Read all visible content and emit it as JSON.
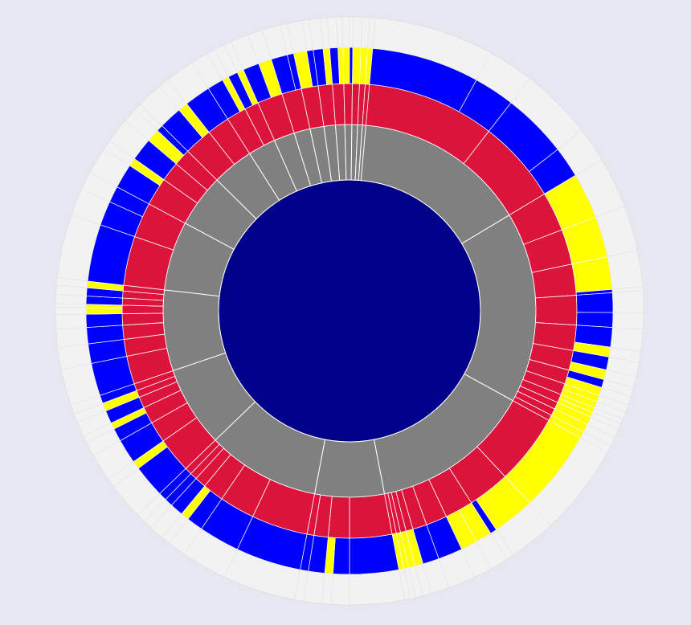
{
  "chart_data": {
    "type": "sunburst",
    "title": "",
    "levels": 4,
    "colors": {
      "level_0": "#00008b",
      "level_1": "#808080",
      "level_2": "#dc143c",
      "level_3_primary": "#0000ff",
      "level_3_secondary": "#ffff00",
      "outer_ring": "#f2f2f2",
      "background": "#e5e8f0",
      "separator": "#ffffff"
    },
    "root": {
      "value": 1,
      "children": [
        {
          "value": 0.164,
          "children": [
            {
              "value": 0.105,
              "children": [
                {
                  "value": 0.08,
                  "c": "B"
                },
                {
                  "value": 0.025,
                  "c": "B"
                }
              ]
            },
            {
              "value": 0.059,
              "children": [
                {
                  "value": 0.04,
                  "c": "B"
                },
                {
                  "value": 0.019,
                  "c": "B"
                }
              ]
            }
          ]
        },
        {
          "value": 0.166,
          "children": [
            {
              "value": 0.028,
              "children": [
                {
                  "value": 0.028,
                  "c": "Y"
                }
              ]
            },
            {
              "value": 0.025,
              "children": [
                {
                  "value": 0.025,
                  "c": "Y"
                }
              ]
            },
            {
              "value": 0.022,
              "children": [
                {
                  "value": 0.02,
                  "c": "Y"
                },
                {
                  "value": 0.002,
                  "c": "B"
                }
              ]
            },
            {
              "value": 0.021,
              "children": [
                {
                  "value": 0.012,
                  "c": "B"
                },
                {
                  "value": 0.009,
                  "c": "B"
                }
              ]
            },
            {
              "value": 0.018,
              "children": [
                {
                  "value": 0.012,
                  "c": "B"
                },
                {
                  "value": 0.006,
                  "c": "Y"
                }
              ]
            },
            {
              "value": 0.014,
              "children": [
                {
                  "value": 0.008,
                  "c": "B"
                },
                {
                  "value": 0.006,
                  "c": "Y"
                }
              ]
            },
            {
              "value": 0.01,
              "children": [
                {
                  "value": 0.005,
                  "c": "B"
                },
                {
                  "value": 0.005,
                  "c": "Y"
                }
              ]
            },
            {
              "value": 0.008,
              "children": [
                {
                  "value": 0.004,
                  "c": "Y"
                },
                {
                  "value": 0.004,
                  "c": "Y"
                }
              ]
            },
            {
              "value": 0.006,
              "children": [
                {
                  "value": 0.003,
                  "c": "Y"
                },
                {
                  "value": 0.003,
                  "c": "Y"
                }
              ]
            },
            {
              "value": 0.005,
              "children": [
                {
                  "value": 0.005,
                  "c": "Y"
                }
              ]
            },
            {
              "value": 0.005,
              "children": [
                {
                  "value": 0.005,
                  "c": "Y"
                }
              ]
            },
            {
              "value": 0.004,
              "children": [
                {
                  "value": 0.004,
                  "c": "Y"
                }
              ]
            }
          ]
        },
        {
          "value": 0.14,
          "children": [
            {
              "value": 0.05,
              "children": [
                {
                  "value": 0.05,
                  "c": "Y"
                }
              ]
            },
            {
              "value": 0.03,
              "children": [
                {
                  "value": 0.026,
                  "c": "Y"
                },
                {
                  "value": 0.004,
                  "c": "B"
                }
              ]
            },
            {
              "value": 0.02,
              "children": [
                {
                  "value": 0.01,
                  "c": "Y"
                },
                {
                  "value": 0.01,
                  "c": "Y"
                }
              ]
            },
            {
              "value": 0.015,
              "children": [
                {
                  "value": 0.015,
                  "c": "B"
                }
              ]
            },
            {
              "value": 0.01,
              "children": [
                {
                  "value": 0.01,
                  "c": "B"
                }
              ]
            },
            {
              "value": 0.005,
              "children": [
                {
                  "value": 0.005,
                  "c": "Y"
                }
              ]
            },
            {
              "value": 0.004,
              "children": [
                {
                  "value": 0.004,
                  "c": "Y"
                }
              ]
            },
            {
              "value": 0.003,
              "children": [
                {
                  "value": 0.003,
                  "c": "Y"
                }
              ]
            },
            {
              "value": 0.003,
              "children": [
                {
                  "value": 0.003,
                  "c": "Y"
                }
              ]
            }
          ]
        },
        {
          "value": 0.06,
          "children": [
            {
              "value": 0.03,
              "children": [
                {
                  "value": 0.03,
                  "c": "B"
                }
              ]
            },
            {
              "value": 0.015,
              "children": [
                {
                  "value": 0.01,
                  "c": "B"
                },
                {
                  "value": 0.005,
                  "c": "Y"
                }
              ]
            },
            {
              "value": 0.01,
              "children": [
                {
                  "value": 0.01,
                  "c": "B"
                }
              ]
            },
            {
              "value": 0.005,
              "children": [
                {
                  "value": 0.005,
                  "c": "B"
                }
              ]
            }
          ]
        },
        {
          "value": 0.098,
          "children": [
            {
              "value": 0.04,
              "children": [
                {
                  "value": 0.04,
                  "c": "B"
                }
              ]
            },
            {
              "value": 0.025,
              "children": [
                {
                  "value": 0.025,
                  "c": "B"
                }
              ]
            },
            {
              "value": 0.015,
              "children": [
                {
                  "value": 0.01,
                  "c": "B"
                },
                {
                  "value": 0.005,
                  "c": "Y"
                }
              ]
            },
            {
              "value": 0.008,
              "children": [
                {
                  "value": 0.008,
                  "c": "B"
                }
              ]
            },
            {
              "value": 0.005,
              "children": [
                {
                  "value": 0.005,
                  "c": "B"
                }
              ]
            },
            {
              "value": 0.005,
              "children": [
                {
                  "value": 0.005,
                  "c": "B"
                }
              ]
            }
          ]
        },
        {
          "value": 0.07,
          "children": [
            {
              "value": 0.025,
              "children": [
                {
                  "value": 0.02,
                  "c": "B"
                },
                {
                  "value": 0.005,
                  "c": "Y"
                }
              ]
            },
            {
              "value": 0.015,
              "children": [
                {
                  "value": 0.015,
                  "c": "B"
                }
              ]
            },
            {
              "value": 0.012,
              "children": [
                {
                  "value": 0.008,
                  "c": "B"
                },
                {
                  "value": 0.004,
                  "c": "Y"
                }
              ]
            },
            {
              "value": 0.008,
              "children": [
                {
                  "value": 0.008,
                  "c": "B"
                }
              ]
            },
            {
              "value": 0.005,
              "children": [
                {
                  "value": 0.005,
                  "c": "Y"
                }
              ]
            },
            {
              "value": 0.005,
              "children": [
                {
                  "value": 0.005,
                  "c": "B"
                }
              ]
            }
          ]
        },
        {
          "value": 0.07,
          "children": [
            {
              "value": 0.02,
              "children": [
                {
                  "value": 0.02,
                  "c": "B"
                }
              ]
            },
            {
              "value": 0.012,
              "children": [
                {
                  "value": 0.012,
                  "c": "B"
                }
              ]
            },
            {
              "value": 0.01,
              "children": [
                {
                  "value": 0.01,
                  "c": "B"
                }
              ]
            },
            {
              "value": 0.008,
              "children": [
                {
                  "value": 0.008,
                  "c": "B"
                }
              ]
            },
            {
              "value": 0.006,
              "children": [
                {
                  "value": 0.004,
                  "c": "Y"
                },
                {
                  "value": 0.002,
                  "c": "Y"
                }
              ]
            },
            {
              "value": 0.005,
              "children": [
                {
                  "value": 0.005,
                  "c": "B"
                }
              ]
            },
            {
              "value": 0.005,
              "children": [
                {
                  "value": 0.005,
                  "c": "B"
                }
              ]
            },
            {
              "value": 0.004,
              "children": [
                {
                  "value": 0.004,
                  "c": "Y"
                }
              ]
            }
          ]
        },
        {
          "value": 0.06,
          "children": [
            {
              "value": 0.035,
              "children": [
                {
                  "value": 0.035,
                  "c": "B"
                }
              ]
            },
            {
              "value": 0.025,
              "children": [
                {
                  "value": 0.015,
                  "c": "B"
                },
                {
                  "value": 0.01,
                  "c": "B"
                }
              ]
            }
          ]
        },
        {
          "value": 0.046,
          "children": [
            {
              "value": 0.02,
              "children": [
                {
                  "value": 0.015,
                  "c": "B"
                },
                {
                  "value": 0.005,
                  "c": "Y"
                }
              ]
            },
            {
              "value": 0.014,
              "children": [
                {
                  "value": 0.014,
                  "c": "B"
                }
              ]
            },
            {
              "value": 0.012,
              "children": [
                {
                  "value": 0.008,
                  "c": "Y"
                },
                {
                  "value": 0.004,
                  "c": "B"
                }
              ]
            }
          ]
        },
        {
          "value": 0.036,
          "children": [
            {
              "value": 0.02,
              "children": [
                {
                  "value": 0.014,
                  "c": "B"
                },
                {
                  "value": 0.006,
                  "c": "Y"
                }
              ]
            },
            {
              "value": 0.016,
              "children": [
                {
                  "value": 0.016,
                  "c": "B"
                }
              ]
            }
          ]
        },
        {
          "value": 0.024,
          "children": [
            {
              "value": 0.014,
              "children": [
                {
                  "value": 0.01,
                  "c": "B"
                },
                {
                  "value": 0.004,
                  "c": "Y"
                }
              ]
            },
            {
              "value": 0.01,
              "children": [
                {
                  "value": 0.006,
                  "c": "B"
                },
                {
                  "value": 0.004,
                  "c": "Y"
                }
              ]
            }
          ]
        },
        {
          "value": 0.018,
          "children": [
            {
              "value": 0.018,
              "children": [
                {
                  "value": 0.01,
                  "c": "B"
                },
                {
                  "value": 0.008,
                  "c": "Y"
                }
              ]
            }
          ]
        },
        {
          "value": 0.014,
          "children": [
            {
              "value": 0.014,
              "children": [
                {
                  "value": 0.01,
                  "c": "B"
                },
                {
                  "value": 0.004,
                  "c": "B"
                }
              ]
            }
          ]
        },
        {
          "value": 0.012,
          "children": [
            {
              "value": 0.012,
              "children": [
                {
                  "value": 0.008,
                  "c": "Y"
                },
                {
                  "value": 0.004,
                  "c": "B"
                }
              ]
            }
          ]
        },
        {
          "value": 0.01,
          "children": [
            {
              "value": 0.01,
              "children": [
                {
                  "value": 0.006,
                  "c": "B"
                },
                {
                  "value": 0.004,
                  "c": "Y"
                }
              ]
            }
          ]
        },
        {
          "value": 0.008,
          "children": [
            {
              "value": 0.008,
              "children": [
                {
                  "value": 0.005,
                  "c": "B"
                },
                {
                  "value": 0.003,
                  "c": "Y"
                }
              ]
            }
          ]
        },
        {
          "value": 0.006,
          "children": [
            {
              "value": 0.006,
              "children": [
                {
                  "value": 0.004,
                  "c": "Y"
                },
                {
                  "value": 0.002,
                  "c": "B"
                }
              ]
            }
          ]
        },
        {
          "value": 0.005,
          "children": [
            {
              "value": 0.005,
              "children": [
                {
                  "value": 0.005,
                  "c": "Y"
                }
              ]
            }
          ]
        },
        {
          "value": 0.004,
          "children": [
            {
              "value": 0.004,
              "children": [
                {
                  "value": 0.004,
                  "c": "Y"
                }
              ]
            }
          ]
        },
        {
          "value": 0.003,
          "children": [
            {
              "value": 0.003,
              "children": [
                {
                  "value": 0.003,
                  "c": "Y"
                }
              ]
            }
          ]
        }
      ]
    }
  }
}
